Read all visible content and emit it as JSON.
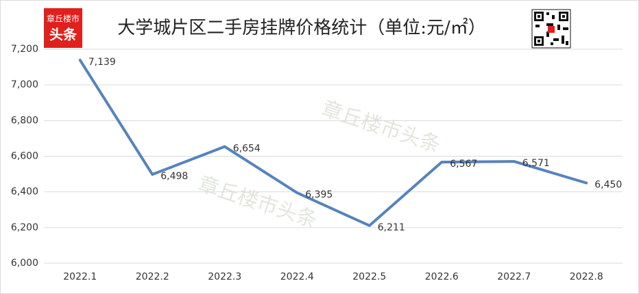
{
  "chart_data": {
    "type": "line",
    "title": "大学城片区二手房挂牌价格统计（单位:元/㎡）",
    "logo": {
      "line1": "章丘楼市",
      "line2": "头条"
    },
    "watermark": "章丘楼市头条",
    "categories": [
      "2022.1",
      "2022.2",
      "2022.3",
      "2022.4",
      "2022.5",
      "2022.6",
      "2022.7",
      "2022.8"
    ],
    "values": [
      7139,
      6498,
      6654,
      6395,
      6211,
      6567,
      6571,
      6450
    ],
    "value_labels": [
      "7,139",
      "6,498",
      "6,654",
      "6,395",
      "6,211",
      "6,567",
      "6,571",
      "6,450"
    ],
    "color": "#5683bd",
    "ylim": [
      6000,
      7200
    ],
    "yticks": [
      {
        "value": 6000,
        "label": "6,000"
      },
      {
        "value": 6200,
        "label": "6,200"
      },
      {
        "value": 6400,
        "label": "6,400"
      },
      {
        "value": 6600,
        "label": "6,600"
      },
      {
        "value": 6800,
        "label": "6,800"
      },
      {
        "value": 7000,
        "label": "7,000"
      },
      {
        "value": 7200,
        "label": "7,200"
      }
    ],
    "grid": true
  }
}
